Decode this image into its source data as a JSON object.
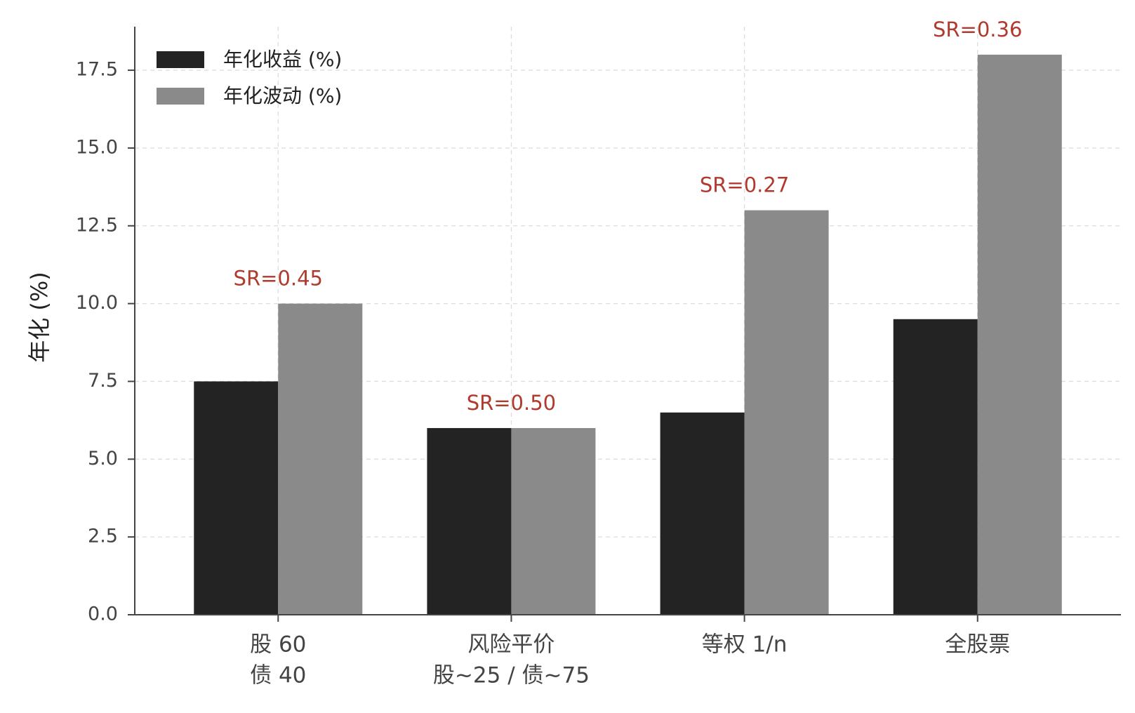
{
  "colors": {
    "return_bar": "#232323",
    "vol_bar": "#8a8a8a",
    "sr_annotation": "#b03a2e",
    "grid": "#dddddd",
    "axis": "#444444"
  },
  "chart_data": {
    "type": "bar",
    "title": "",
    "xlabel": "",
    "ylabel": "年化 (%)",
    "ylim": [
      0,
      18.9
    ],
    "yticks": [
      "0.0",
      "2.5",
      "5.0",
      "7.5",
      "10.0",
      "12.5",
      "15.0",
      "17.5"
    ],
    "grid": true,
    "legend_position": "top-left",
    "categories": [
      [
        "股 60",
        "债 40"
      ],
      [
        "风险平价",
        "股~25 / 债~75"
      ],
      [
        "等权 1/n"
      ],
      [
        "全股票"
      ]
    ],
    "series": [
      {
        "name": "年化收益 (%)",
        "values": [
          7.5,
          6.0,
          6.5,
          9.5
        ]
      },
      {
        "name": "年化波动 (%)",
        "values": [
          10.0,
          6.0,
          13.0,
          18.0
        ]
      }
    ],
    "annotations": [
      "SR=0.45",
      "SR=0.50",
      "SR=0.27",
      "SR=0.36"
    ]
  }
}
